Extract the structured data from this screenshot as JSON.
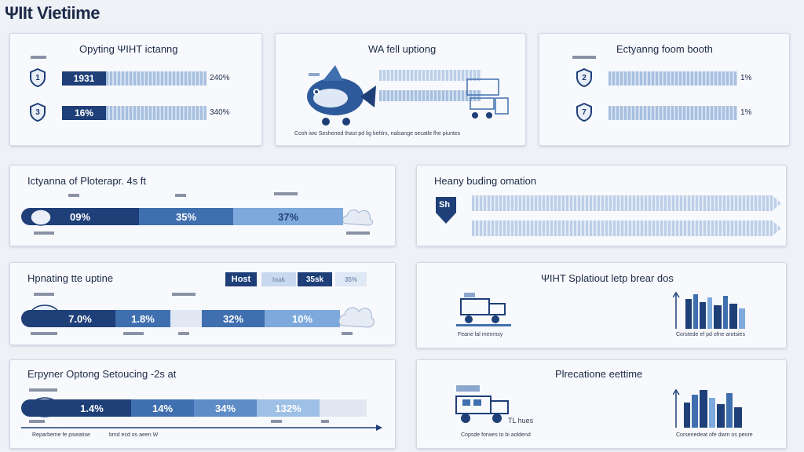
{
  "page_title": "ΨIIt Vietiime",
  "colors": {
    "navy": "#1e3f78",
    "mid_blue": "#3f6fae",
    "light_blue": "#7ea9dc",
    "pale_blue": "#c8d9ef",
    "card_bg": "#f8f9fc"
  },
  "cards": {
    "top_left": {
      "title": "Opyting ΨIHT ictanng",
      "rows": [
        {
          "badge": "1",
          "label": "1931",
          "value_text": "240%"
        },
        {
          "badge": "3",
          "label": "16%",
          "value_text": "340%"
        }
      ]
    },
    "top_middle": {
      "title": "WA fell uptiong",
      "caption": "Cosh iwo Seshened thast pd lig kehlrs, nalsange secatle fhe piuntes"
    },
    "top_right": {
      "title": "Ectyanng foom booth",
      "rows": [
        {
          "badge": "2",
          "value_text": "1%"
        },
        {
          "badge": "7",
          "value_text": "1%"
        }
      ]
    },
    "mid_left": {
      "title": "Ictyanna of Ploterapr. 4s ft"
    },
    "mid_right": {
      "title": "Heany buding omation",
      "badge": "Sh"
    },
    "row3_left": {
      "title": "Hpnating tte uptine",
      "legend": [
        "Host",
        "loak",
        "35sk",
        "35%"
      ]
    },
    "row3_right": {
      "title": "ΨIHT Splatiout letp brear dos",
      "left_caption": "Feane lal menmsy",
      "right_caption": "Corstede ef pd ofne arotsies"
    },
    "row4_left": {
      "title": "Erpyner Optong Setoucing -2s at",
      "axis_label": "Reparbeme fe piseatise",
      "axis_label_2": "bmd ecd os aeen W"
    },
    "row4_right": {
      "title": "Plrecatione eettime",
      "vehicle_label": "TL hues",
      "left_caption": "Copsde forwes to bi aoldend",
      "right_caption": "Corsenedeat ofe dwm os peore"
    }
  },
  "chart_data": [
    {
      "type": "bar",
      "title": "Opyting ΨIHT ictanng",
      "categories": [
        "1931",
        "16%"
      ],
      "series": [
        {
          "values": [
            240,
            340
          ]
        }
      ]
    },
    {
      "type": "bar",
      "title": "Ictyanna of Ploterapr. 4s ft",
      "categories": [
        "09%",
        "35%",
        "37%"
      ],
      "series": [
        {
          "values": [
            9,
            35,
            37
          ]
        }
      ]
    },
    {
      "type": "bar",
      "title": "Hpnating tte uptine",
      "categories": [
        "7.0%",
        "1.8%",
        "32%",
        "10%"
      ],
      "series": [
        {
          "values": [
            7.0,
            1.8,
            32,
            10
          ]
        }
      ]
    },
    {
      "type": "bar",
      "title": "Erpyner Optong Setoucing -2s at",
      "categories": [
        "1.4%",
        "14%",
        "34%",
        "132%"
      ],
      "series": [
        {
          "values": [
            1.4,
            14,
            34,
            132
          ]
        }
      ]
    }
  ]
}
